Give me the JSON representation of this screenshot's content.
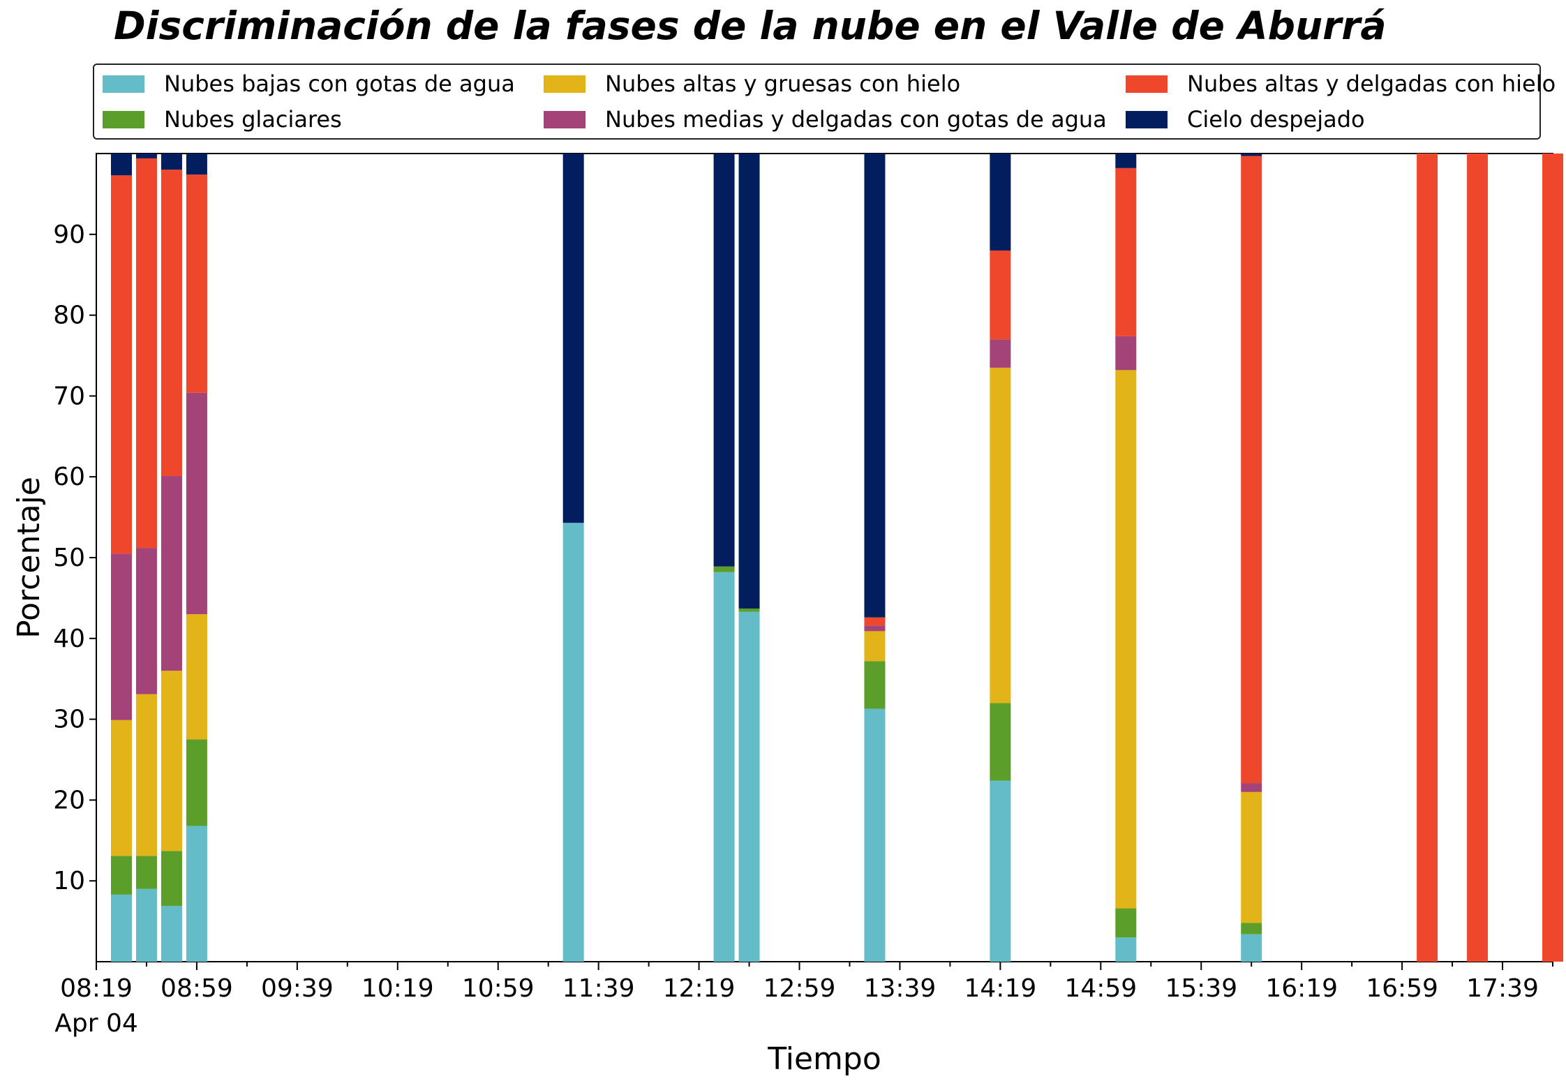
{
  "chart_data": {
    "type": "bar",
    "stacked": true,
    "title": "Discriminación de la fases de la nube en el Valle de Aburrá",
    "xlabel": "Tiempo",
    "ylabel": "Porcentaje",
    "ylim": [
      0,
      100
    ],
    "yticks": [
      10,
      20,
      30,
      40,
      50,
      60,
      70,
      80,
      90
    ],
    "xlim": [
      "08:19",
      "17:59"
    ],
    "xticks": [
      "08:19",
      "08:59",
      "09:39",
      "10:19",
      "10:59",
      "11:39",
      "12:19",
      "12:59",
      "13:39",
      "14:19",
      "14:59",
      "15:39",
      "16:19",
      "16:59",
      "17:39"
    ],
    "x_date_label": "Apr 04",
    "grid": false,
    "legend_position": "top",
    "x": [
      "08:29",
      "08:39",
      "08:49",
      "08:59",
      "11:29",
      "12:29",
      "12:39",
      "13:29",
      "14:19",
      "15:09",
      "15:59",
      "17:09",
      "17:29",
      "17:59"
    ],
    "series": [
      {
        "name": "Nubes bajas con gotas de agua",
        "color": "#63BCC8",
        "values": [
          8.3,
          9.0,
          6.9,
          16.8,
          54.3,
          48.2,
          43.3,
          31.3,
          22.4,
          3.0,
          3.4,
          0,
          0,
          0
        ]
      },
      {
        "name": "Nubes glaciares",
        "color": "#5C9E2A",
        "values": [
          4.8,
          4.1,
          6.8,
          10.7,
          0,
          0.7,
          0.4,
          5.9,
          9.6,
          3.6,
          1.4,
          0,
          0,
          0
        ]
      },
      {
        "name": "Nubes altas y gruesas con hielo",
        "color": "#E3B417",
        "values": [
          16.8,
          20.0,
          22.3,
          15.5,
          0,
          0,
          0,
          3.7,
          41.5,
          66.6,
          16.2,
          0,
          0,
          0
        ]
      },
      {
        "name": "Nubes medias y delgadas con gotas de agua",
        "color": "#A34377",
        "values": [
          20.6,
          18.1,
          24.1,
          27.4,
          0,
          0,
          0,
          0.7,
          3.5,
          4.2,
          1.1,
          0,
          0,
          0
        ]
      },
      {
        "name": "Nubes altas y delgadas con hielo",
        "color": "#EE472B",
        "values": [
          46.8,
          48.2,
          37.9,
          27.0,
          0,
          0,
          0,
          1.0,
          11.0,
          20.8,
          77.6,
          100,
          100,
          100
        ]
      },
      {
        "name": "Cielo despejado",
        "color": "#031E5E",
        "values": [
          2.7,
          0.6,
          2.0,
          2.6,
          45.7,
          51.1,
          56.3,
          57.4,
          12.0,
          1.8,
          0.5,
          0,
          0,
          0
        ]
      }
    ]
  }
}
